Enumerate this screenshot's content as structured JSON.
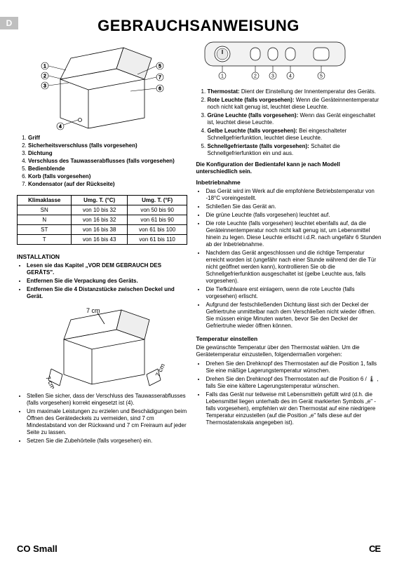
{
  "lang_badge": "D",
  "title": "GEBRAUCHSANWEISUNG",
  "freezer_labels": [
    "1",
    "2",
    "3",
    "4",
    "5",
    "6",
    "7"
  ],
  "parts_legend": [
    "Griff",
    "Sicherheitsverschluss (falls vorgesehen)",
    "Dichtung",
    "Verschluss des Tauwasserabflusses (falls vorgesehen)",
    "Bedienblende",
    "Korb (falls vorgesehen)",
    "Kondensator (auf der Rückseite)"
  ],
  "klima_table": {
    "headers": [
      "Klimaklasse",
      "Umg. T. (°C)",
      "Umg. T. (°F)"
    ],
    "rows": [
      [
        "SN",
        "von 10 bis 32",
        "von 50 bis 90"
      ],
      [
        "N",
        "von 16 bis 32",
        "von 61 bis 90"
      ],
      [
        "ST",
        "von 16 bis 38",
        "von 61 bis 100"
      ],
      [
        "T",
        "von 16 bis 43",
        "von 61 bis 110"
      ]
    ]
  },
  "installation_head": "INSTALLATION",
  "installation_bullets_bold": [
    "Lesen sie das Kapitel „VOR DEM GEBRAUCH DES GERÄTS\".",
    "Entfernen Sie die Verpackung des Geräts.",
    "Entfernen Sie die 4 Distanzstücke zwischen Deckel und Gerät."
  ],
  "spacing_label": "7 cm",
  "installation_bullets_after": [
    "Stellen Sie sicher, dass der Verschluss des Tauwasserabflusses (falls vorgesehen) korrekt eingesetzt ist (4).",
    "Um maximale Leistungen zu erzielen und Beschädigungen beim Öffnen des Gerätedeckels zu vermeiden, sind 7 cm Mindestabstand von der Rückwand und 7 cm Freiraum auf jeder Seite zu lassen.",
    "Setzen Sie die Zubehörteile (falls vorgesehen) ein."
  ],
  "panel_numbers": [
    "1",
    "2",
    "3",
    "4",
    "5"
  ],
  "panel_desc": [
    {
      "lbl": "Thermostat:",
      "txt": " Dient der Einstellung der Innentemperatur des Geräts."
    },
    {
      "lbl": "Rote Leuchte (falls vorgesehen):",
      "txt": " Wenn die Geräteinnentemperatur noch nicht kalt genug ist, leuchtet diese Leuchte."
    },
    {
      "lbl": "Grüne Leuchte (falls vorgesehen):",
      "txt": " Wenn das Gerät eingeschaltet ist, leuchtet diese Leuchte."
    },
    {
      "lbl": "Gelbe Leuchte (falls vorgesehen):",
      "txt": " Bei eingeschalteter Schnellgefrierfunktion, leuchtet diese Leuchte."
    },
    {
      "lbl": "Schnellgefriertaste (falls vorgesehen):",
      "txt": " Schaltet die Schnellgefrierfunktion ein und aus."
    }
  ],
  "config_note": "Die Konfiguration der Bedientafel kann je nach Modell unterschiedlich sein.",
  "inbetrieb_head": "Inbetriebnahme",
  "inbetrieb_bullets": [
    "Das Gerät wird im Werk auf die empfohlene Betriebstemperatur von -18°C voreingestellt.",
    "Schließen Sie das Gerät an.",
    "Die grüne Leuchte (falls vorgesehen) leuchtet auf.",
    "Die rote Leuchte (falls vorgesehen) leuchtet ebenfalls auf, da die Geräteinnentemperatur noch nicht kalt genug ist, um Lebensmittel hinein zu legen. Diese Leuchte erlischt i.d.R. nach ungefähr 6 Stunden ab der Inbetriebnahme.",
    "Nachdem das Gerät angeschlossen und die richtige Temperatur erreicht worden ist (ungefähr nach einer Stunde während der die Tür nicht geöffnet werden kann), kontrollieren Sie ob die Schnellgefrierfunktion ausgeschaltet ist (gelbe Leuchte aus, falls vorgesehen).",
    "Die Tiefkühlware erst einlagern, wenn die rote Leuchte (falls vorgesehen) erlischt.",
    "Aufgrund der festschließenden Dichtung lässt sich der Deckel der Gefriertruhe unmittelbar nach dem Verschließen nicht wieder öffnen. Sie müssen einige Minuten warten, bevor Sie den Deckel der Gefriertruhe wieder öffnen können."
  ],
  "temp_head": "Temperatur einstellen",
  "temp_intro": "Die gewünschte Temperatur über den Thermostat wählen. Um die Gerätetemperatur einzustellen, folgendermaßen vorgehen:",
  "temp_bullets": [
    "Drehen Sie den Drehknopf des Thermostaten auf die Position 1, falls Sie eine mäßige Lagerungstemperatur wünschen.",
    "Drehen Sie den Drehknopf des Thermostaten auf die Position 6 /  🌡 , falls Sie eine kältere Lagerungstemperatur wünschen.",
    "Falls das Gerät nur teilweise mit Lebensmitteln gefüllt wird (d.h. die Lebensmittel liegen unterhalb des im Gerät markierten Symbols „e\" - falls vorgesehen), empfehlen wir den Thermostat auf eine niedrigere Temperatur einzustellen (auf die Position „e\" falls diese auf der Thermostatenskala angegeben ist)."
  ],
  "footer_model": "CO Small",
  "footer_ce": "CE",
  "colors": {
    "badge_bg": "#bfbfbf",
    "badge_fg": "#ffffff",
    "panel_bg": "#f2f2f2",
    "panel_border": "#000000",
    "stroke": "#000000"
  }
}
